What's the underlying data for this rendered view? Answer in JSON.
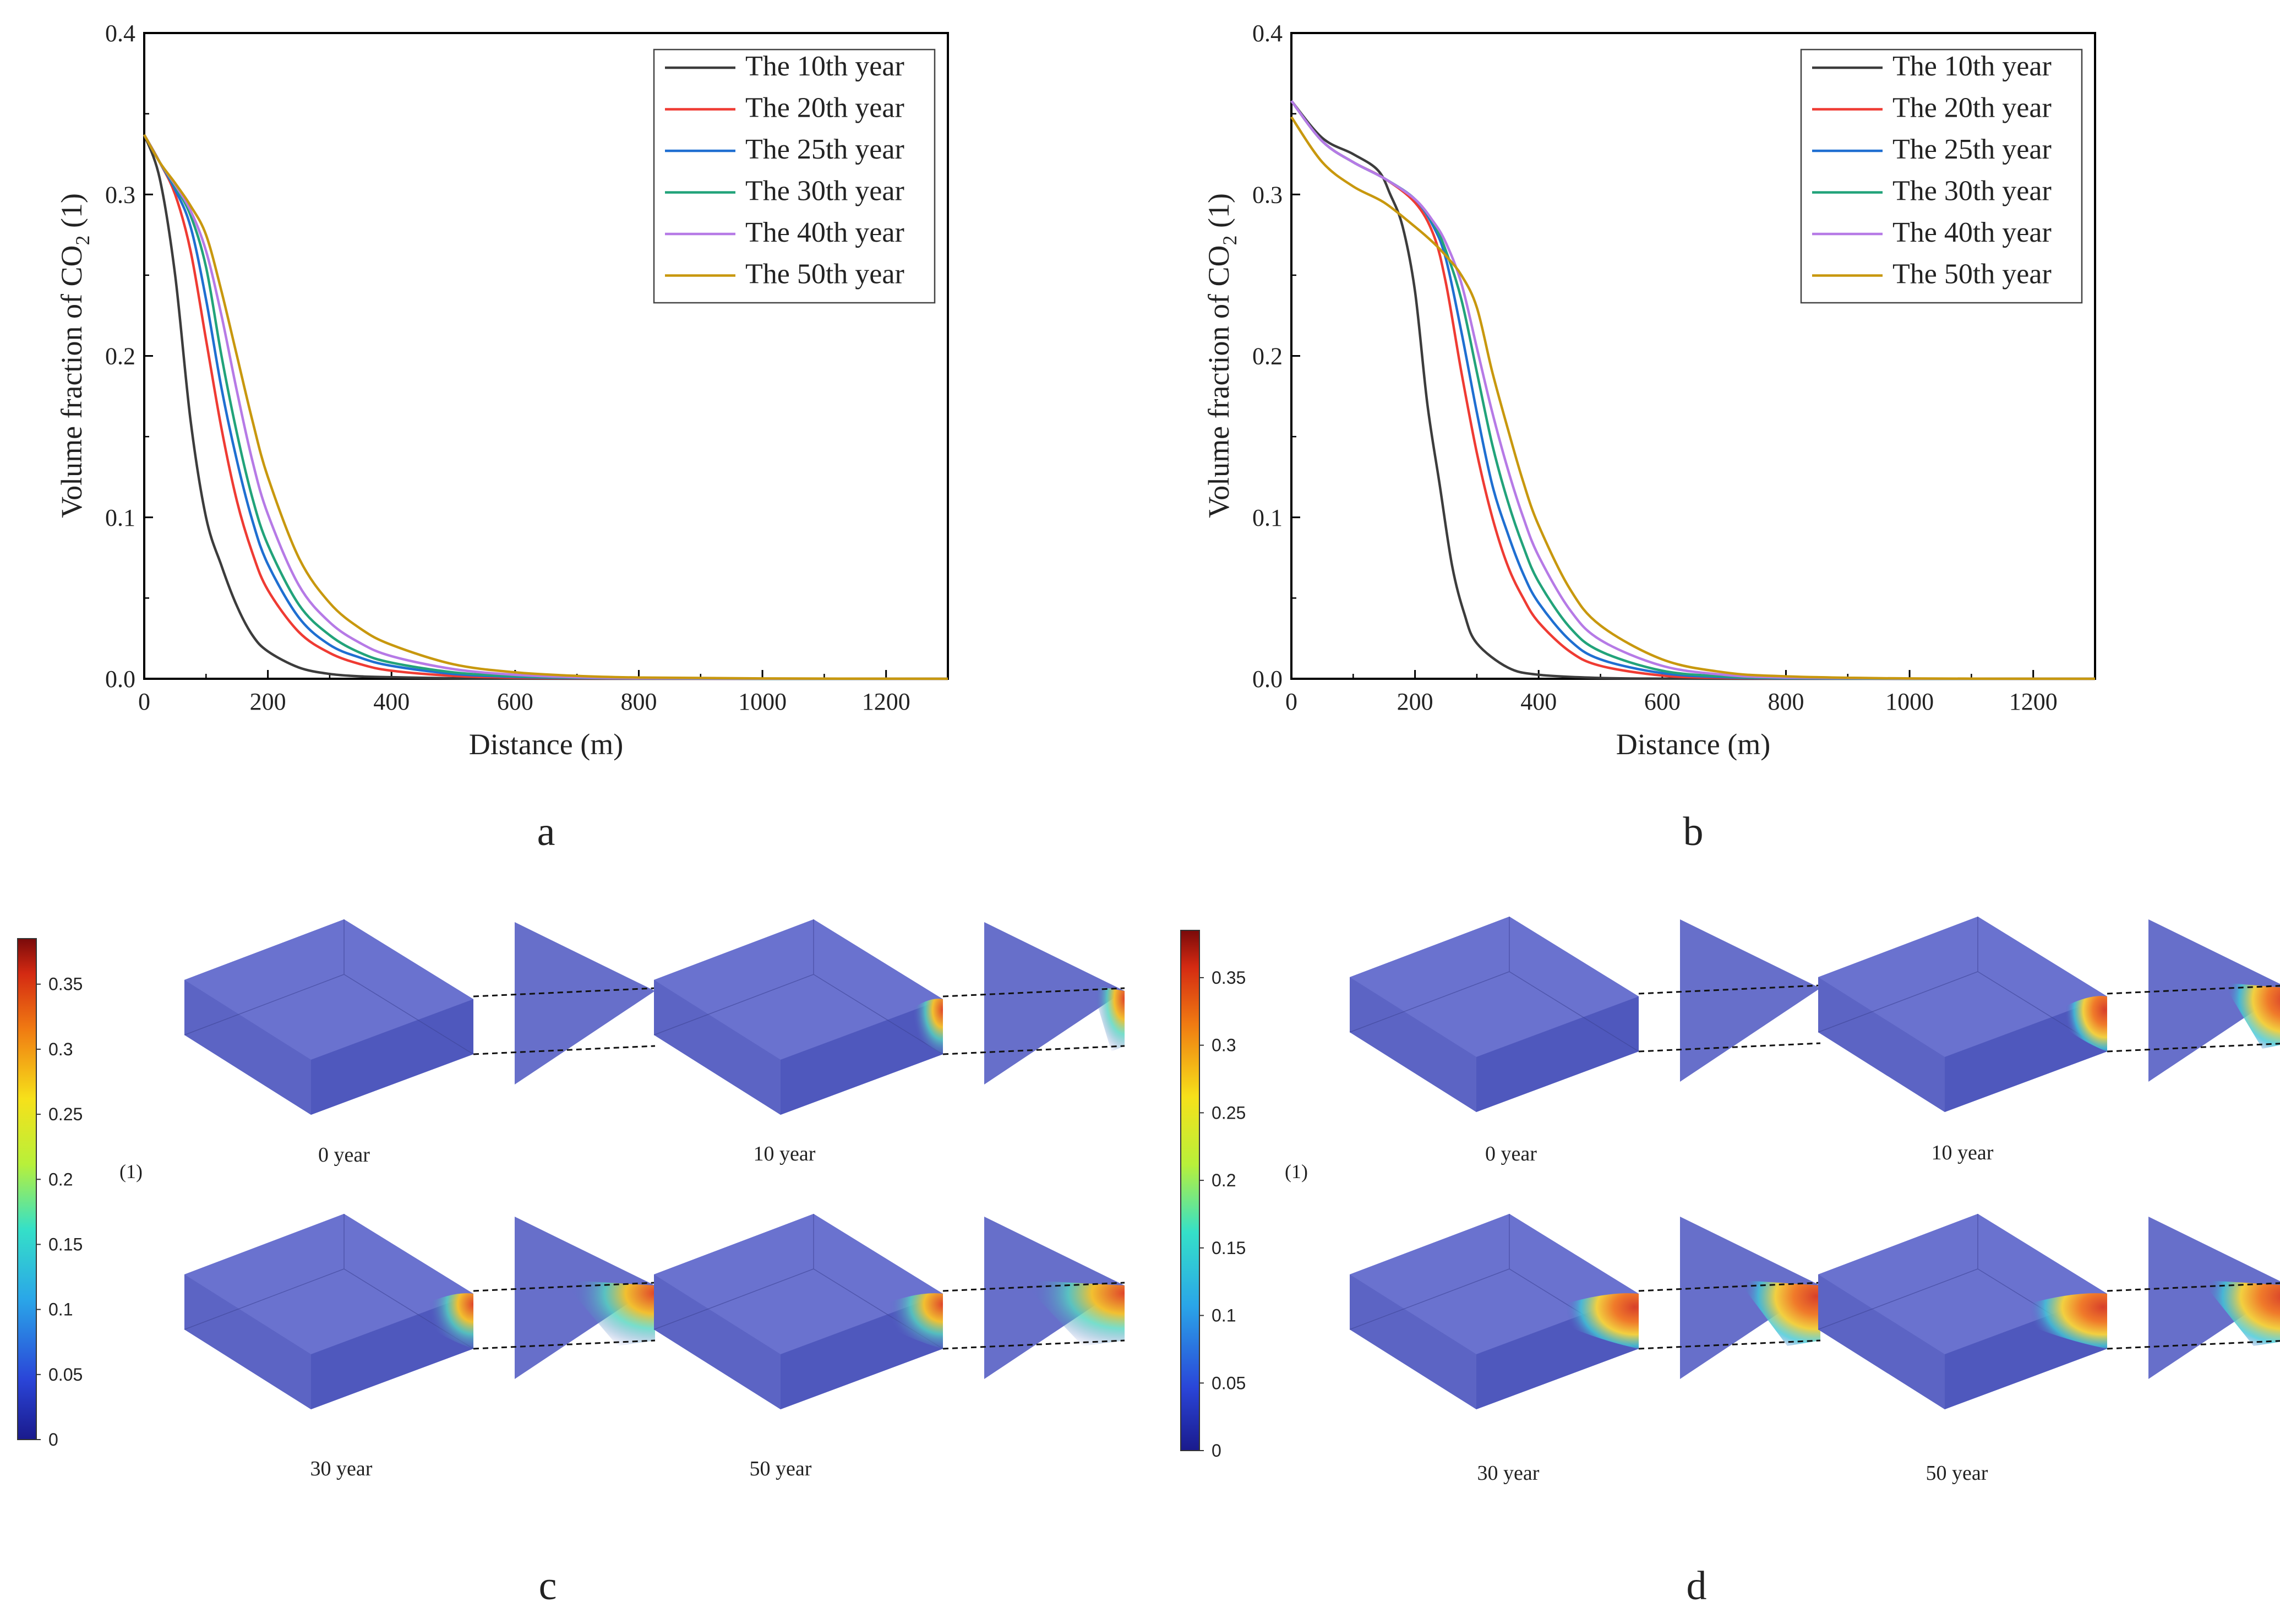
{
  "panel_labels": [
    "a",
    "b",
    "c",
    "d"
  ],
  "colors": {
    "s10": "#3c3c3c",
    "s20": "#ef3b33",
    "s25": "#1f6fd1",
    "s30": "#22a37a",
    "s40": "#b67ae6",
    "s50": "#c8980e",
    "box": "#5a63c6",
    "frame": "#000000"
  },
  "chart_data": [
    {
      "type": "line",
      "panel": "a",
      "xlabel": "Distance (m)",
      "ylabel_main": "Volume fraction of CO",
      "ylabel_sub": "2",
      "ylabel_tail": " (1)",
      "xlim": [
        0,
        1300
      ],
      "ylim": [
        0,
        0.4
      ],
      "xticks": [
        0,
        200,
        400,
        600,
        800,
        1000,
        1200
      ],
      "xtick_labels": [
        "0",
        "200",
        "400",
        "600",
        "800",
        "1000",
        "1200"
      ],
      "yticks": [
        0,
        0.1,
        0.2,
        0.3,
        0.4
      ],
      "ytick_labels": [
        "0.0",
        "0.1",
        "0.2",
        "0.3",
        "0.4"
      ],
      "series": [
        {
          "name": "The 10th year",
          "color": "#3c3c3c",
          "x": [
            0,
            25,
            50,
            75,
            100,
            125,
            150,
            175,
            200,
            250,
            300,
            350,
            400,
            500,
            600,
            800,
            1000,
            1300
          ],
          "y": [
            0.337,
            0.31,
            0.25,
            0.16,
            0.1,
            0.07,
            0.045,
            0.027,
            0.017,
            0.007,
            0.003,
            0.0015,
            0.001,
            0.0003,
            0.0001,
            0,
            0,
            0
          ]
        },
        {
          "name": "The 20th year",
          "color": "#ef3b33",
          "x": [
            0,
            25,
            50,
            75,
            100,
            125,
            150,
            175,
            200,
            250,
            300,
            350,
            400,
            500,
            600,
            700,
            800,
            1000,
            1300
          ],
          "y": [
            0.337,
            0.32,
            0.3,
            0.265,
            0.21,
            0.155,
            0.11,
            0.078,
            0.055,
            0.029,
            0.016,
            0.009,
            0.005,
            0.0018,
            0.0007,
            0.0003,
            0.0001,
            0,
            0
          ]
        },
        {
          "name": "The 25th year",
          "color": "#1f6fd1",
          "x": [
            0,
            25,
            50,
            75,
            100,
            125,
            150,
            175,
            200,
            250,
            300,
            350,
            400,
            500,
            600,
            700,
            800,
            1000,
            1300
          ],
          "y": [
            0.337,
            0.32,
            0.303,
            0.28,
            0.235,
            0.18,
            0.135,
            0.098,
            0.071,
            0.038,
            0.021,
            0.013,
            0.008,
            0.003,
            0.0012,
            0.0005,
            0.0002,
            0,
            0
          ]
        },
        {
          "name": "The 30th year",
          "color": "#22a37a",
          "x": [
            0,
            25,
            50,
            75,
            100,
            125,
            150,
            175,
            200,
            250,
            300,
            350,
            400,
            500,
            600,
            700,
            800,
            1000,
            1300
          ],
          "y": [
            0.337,
            0.32,
            0.305,
            0.287,
            0.255,
            0.2,
            0.152,
            0.112,
            0.083,
            0.046,
            0.027,
            0.016,
            0.01,
            0.004,
            0.0016,
            0.0007,
            0.0003,
            0,
            0
          ]
        },
        {
          "name": "The 40th year",
          "color": "#b67ae6",
          "x": [
            0,
            25,
            50,
            75,
            100,
            125,
            150,
            175,
            200,
            250,
            300,
            350,
            400,
            500,
            600,
            700,
            800,
            1000,
            1300
          ],
          "y": [
            0.337,
            0.32,
            0.306,
            0.29,
            0.265,
            0.225,
            0.178,
            0.135,
            0.102,
            0.058,
            0.035,
            0.022,
            0.014,
            0.006,
            0.0025,
            0.001,
            0.0004,
            0.0001,
            0
          ]
        },
        {
          "name": "The 50th year",
          "color": "#c8980e",
          "x": [
            0,
            25,
            50,
            75,
            100,
            125,
            150,
            175,
            200,
            250,
            300,
            350,
            400,
            500,
            600,
            700,
            800,
            1000,
            1300
          ],
          "y": [
            0.337,
            0.32,
            0.307,
            0.293,
            0.275,
            0.24,
            0.2,
            0.16,
            0.125,
            0.075,
            0.047,
            0.031,
            0.021,
            0.009,
            0.004,
            0.0018,
            0.0008,
            0.0002,
            0
          ]
        }
      ]
    },
    {
      "type": "line",
      "panel": "b",
      "xlabel": "Distance (m)",
      "ylabel_main": "Volume fraction of CO",
      "ylabel_sub": "2",
      "ylabel_tail": " (1)",
      "xlim": [
        0,
        1300
      ],
      "ylim": [
        0,
        0.4
      ],
      "xticks": [
        0,
        200,
        400,
        600,
        800,
        1000,
        1200
      ],
      "xtick_labels": [
        "0",
        "200",
        "400",
        "600",
        "800",
        "1000",
        "1200"
      ],
      "yticks": [
        0,
        0.1,
        0.2,
        0.3,
        0.4
      ],
      "ytick_labels": [
        "0.0",
        "0.1",
        "0.2",
        "0.3",
        "0.4"
      ],
      "series": [
        {
          "name": "The 10th year",
          "color": "#3c3c3c",
          "x": [
            0,
            50,
            100,
            140,
            160,
            180,
            200,
            220,
            240,
            260,
            280,
            300,
            350,
            400,
            500,
            600,
            800,
            1000,
            1300
          ],
          "y": [
            0.358,
            0.335,
            0.325,
            0.315,
            0.3,
            0.28,
            0.24,
            0.17,
            0.12,
            0.07,
            0.04,
            0.022,
            0.007,
            0.0025,
            0.0005,
            0.0001,
            0,
            0,
            0
          ]
        },
        {
          "name": "The 20th year",
          "color": "#ef3b33",
          "x": [
            0,
            50,
            100,
            150,
            200,
            230,
            250,
            275,
            300,
            325,
            350,
            375,
            400,
            450,
            500,
            600,
            700,
            800,
            1000,
            1300
          ],
          "y": [
            0.358,
            0.333,
            0.32,
            0.31,
            0.295,
            0.275,
            0.245,
            0.19,
            0.14,
            0.1,
            0.07,
            0.05,
            0.035,
            0.017,
            0.008,
            0.002,
            0.0006,
            0.0002,
            0,
            0
          ]
        },
        {
          "name": "The 25th year",
          "color": "#1f6fd1",
          "x": [
            0,
            50,
            100,
            150,
            200,
            230,
            250,
            275,
            300,
            325,
            350,
            375,
            400,
            450,
            500,
            600,
            700,
            800,
            1000,
            1300
          ],
          "y": [
            0.358,
            0.333,
            0.32,
            0.31,
            0.297,
            0.28,
            0.26,
            0.215,
            0.165,
            0.12,
            0.09,
            0.065,
            0.047,
            0.024,
            0.012,
            0.0035,
            0.001,
            0.0003,
            0,
            0
          ]
        },
        {
          "name": "The 30th year",
          "color": "#22a37a",
          "x": [
            0,
            50,
            100,
            150,
            200,
            230,
            250,
            275,
            300,
            325,
            350,
            375,
            400,
            450,
            500,
            600,
            700,
            800,
            1000,
            1300
          ],
          "y": [
            0.358,
            0.333,
            0.32,
            0.31,
            0.297,
            0.282,
            0.265,
            0.235,
            0.19,
            0.145,
            0.11,
            0.082,
            0.06,
            0.032,
            0.017,
            0.005,
            0.0015,
            0.0005,
            0,
            0
          ]
        },
        {
          "name": "The 40th year",
          "color": "#b67ae6",
          "x": [
            0,
            50,
            100,
            150,
            200,
            230,
            250,
            275,
            300,
            325,
            350,
            375,
            400,
            450,
            500,
            600,
            700,
            800,
            1000,
            1300
          ],
          "y": [
            0.358,
            0.333,
            0.32,
            0.31,
            0.297,
            0.283,
            0.27,
            0.245,
            0.205,
            0.165,
            0.13,
            0.1,
            0.076,
            0.043,
            0.024,
            0.008,
            0.0025,
            0.0008,
            0.0001,
            0
          ]
        },
        {
          "name": "The 50th year",
          "color": "#c8980e",
          "x": [
            0,
            50,
            100,
            150,
            200,
            230,
            250,
            275,
            300,
            325,
            350,
            375,
            400,
            450,
            500,
            600,
            700,
            800,
            1000,
            1300
          ],
          "y": [
            0.348,
            0.32,
            0.305,
            0.295,
            0.28,
            0.27,
            0.262,
            0.25,
            0.23,
            0.19,
            0.155,
            0.122,
            0.095,
            0.056,
            0.033,
            0.012,
            0.004,
            0.0015,
            0.0002,
            0
          ]
        }
      ]
    }
  ],
  "colorbars": [
    {
      "panel": "c",
      "ticks": [
        "0.35",
        "0.3",
        "0.25",
        "0.2",
        "0.15",
        "0.1",
        "0.05",
        "0"
      ],
      "unit": "(1)"
    },
    {
      "panel": "d",
      "ticks": [
        "0.35",
        "0.3",
        "0.25",
        "0.2",
        "0.15",
        "0.1",
        "0.05",
        "0"
      ],
      "unit": "(1)"
    }
  ],
  "snapshot_labels": {
    "c": [
      "0 year",
      "10 year",
      "30 year",
      "50 year"
    ],
    "d": [
      "0 year",
      "10 year",
      "30 year",
      "50 year"
    ]
  }
}
